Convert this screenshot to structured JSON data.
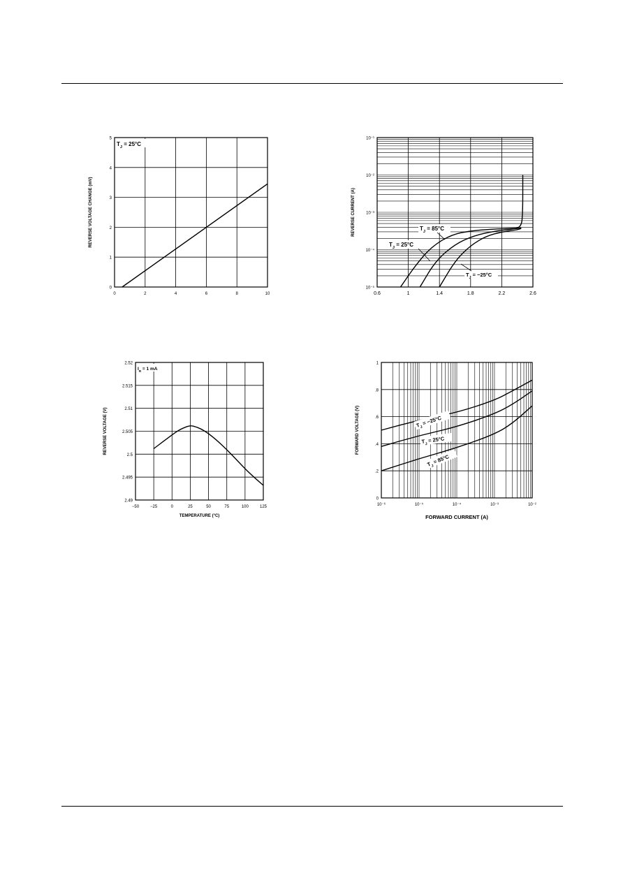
{
  "chart_data": [
    {
      "id": "chart1",
      "type": "line",
      "ylabel": "REVERSE VOLTAGE CHANGE (mV)",
      "xlabel": "",
      "annotation": "T_J = 25°C",
      "xlim": [
        0,
        10
      ],
      "ylim": [
        0,
        5
      ],
      "x_ticks": [
        "0",
        "2",
        "4",
        "6",
        "8",
        "10"
      ],
      "y_ticks": [
        "0",
        "1",
        "2",
        "3",
        "4",
        "5"
      ],
      "grid": true,
      "series": [
        {
          "x": [
            0.5,
            10
          ],
          "y": [
            0,
            3.45
          ]
        }
      ]
    },
    {
      "id": "chart2",
      "type": "line",
      "ylabel": "REVERSE CURRENT (A)",
      "xlabel": "",
      "ylog": true,
      "xlim": [
        0.6,
        2.6
      ],
      "ylim": [
        1e-05,
        0.1
      ],
      "x_ticks": [
        "0.6",
        "1",
        "1.4",
        "1.8",
        "2.2",
        "2.6"
      ],
      "y_ticks": [
        "10⁻¹",
        "10⁻²",
        "10⁻³",
        "10⁻⁴",
        "10⁻⁵"
      ],
      "y_tick_values": [
        0.1,
        0.01,
        0.001,
        0.0001,
        1e-05
      ],
      "grid": true,
      "series": [
        {
          "label": "T_J = 85°C",
          "x": [
            0.9,
            1.1,
            1.3,
            1.55,
            1.8,
            2.05,
            2.3,
            2.45,
            2.47,
            2.47
          ],
          "y": [
            1e-05,
            4e-05,
            0.00012,
            0.00025,
            0.00032,
            0.00035,
            0.00037,
            0.00038,
            0.001,
            0.01
          ]
        },
        {
          "label": "T_J = 25°C",
          "x": [
            1.15,
            1.35,
            1.6,
            1.85,
            2.1,
            2.3,
            2.45
          ],
          "y": [
            1e-05,
            5e-05,
            0.00014,
            0.00024,
            0.00031,
            0.00035,
            0.00038
          ]
        },
        {
          "label": "T_J = −25°C",
          "x": [
            1.4,
            1.6,
            1.8,
            2.0,
            2.2,
            2.4,
            2.45
          ],
          "y": [
            1e-05,
            5e-05,
            0.00013,
            0.00023,
            0.0003,
            0.00034,
            0.00037
          ]
        }
      ]
    },
    {
      "id": "chart3",
      "type": "line",
      "ylabel": "REVERSE VOLTAGE (V)",
      "xlabel": "TEMPERATURE (°C)",
      "annotation": "I_R = 1 mA",
      "xlim": [
        -50,
        125
      ],
      "ylim": [
        2.49,
        2.52
      ],
      "x_ticks": [
        "−50",
        "−25",
        "0",
        "25",
        "50",
        "75",
        "100",
        "125"
      ],
      "y_ticks": [
        "2.49",
        "2.495",
        "2.5",
        "2.505",
        "2.51",
        "2.515",
        "2.52"
      ],
      "grid": true,
      "series": [
        {
          "x": [
            -25,
            -10,
            0,
            10,
            20,
            25,
            30,
            40,
            50,
            60,
            75,
            90,
            105,
            125
          ],
          "y": [
            2.5012,
            2.503,
            2.5042,
            2.5053,
            2.506,
            2.5062,
            2.5061,
            2.5055,
            2.5045,
            2.5032,
            2.501,
            2.4985,
            2.496,
            2.4932
          ]
        }
      ]
    },
    {
      "id": "chart4",
      "type": "line",
      "ylabel": "FORWARD VOLTAGE (V)",
      "xlabel": "FORWARD CURRENT (A)",
      "xlog": true,
      "xlim": [
        1e-06,
        0.01
      ],
      "ylim": [
        0,
        1
      ],
      "x_ticks": [
        "10⁻⁶",
        "10⁻⁵",
        "10⁻⁴",
        "10⁻³",
        "10⁻²"
      ],
      "x_tick_values": [
        1e-06,
        1e-05,
        0.0001,
        0.001,
        0.01
      ],
      "y_ticks": [
        "0",
        ".2",
        ".4",
        ".6",
        ".8",
        "1"
      ],
      "grid": true,
      "series": [
        {
          "label": "T_J = −25°C",
          "x": [
            1e-06,
            1e-05,
            0.0001,
            0.001,
            0.003,
            0.01
          ],
          "y": [
            0.5,
            0.575,
            0.63,
            0.72,
            0.79,
            0.87
          ]
        },
        {
          "label": "T_J = 25°C",
          "x": [
            1e-06,
            1e-05,
            0.0001,
            0.001,
            0.003,
            0.01
          ],
          "y": [
            0.38,
            0.46,
            0.525,
            0.62,
            0.69,
            0.79
          ]
        },
        {
          "label": "T_J = 85°C",
          "x": [
            1e-06,
            1e-05,
            0.0001,
            0.001,
            0.003,
            0.01
          ],
          "y": [
            0.2,
            0.29,
            0.37,
            0.47,
            0.55,
            0.68
          ]
        }
      ]
    }
  ]
}
